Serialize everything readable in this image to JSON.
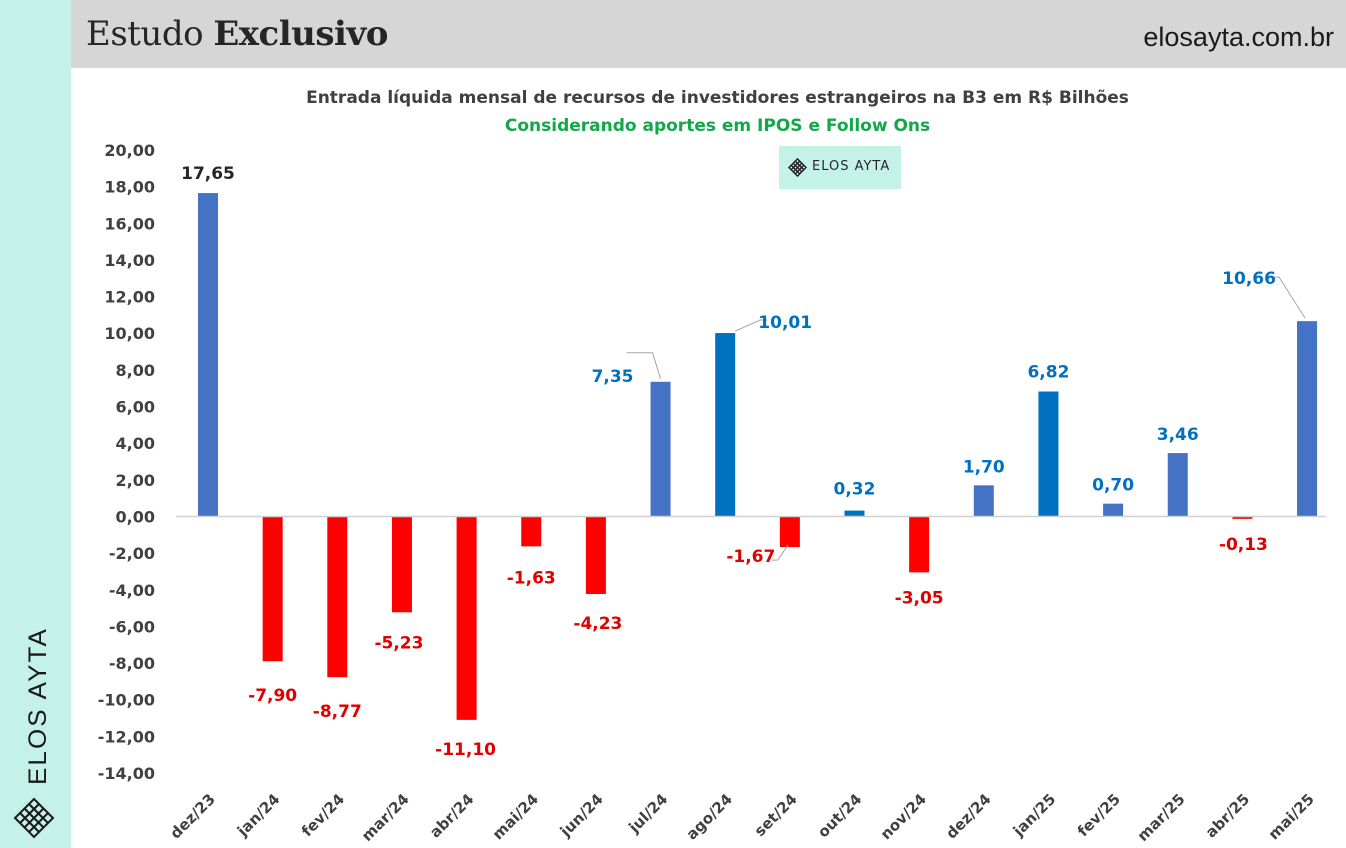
{
  "header": {
    "title_light": "Estudo",
    "title_bold": "Exclusivo",
    "url": "elosayta.com.br"
  },
  "brand": {
    "name": "ELOS AYTA",
    "accent_color": "#c4f2e8",
    "logo_icon": "lattice-diamond-icon"
  },
  "watermark": {
    "text": "ELOS AYTA"
  },
  "chart_data": {
    "type": "bar",
    "title": "Entrada líquida mensal de recursos de investidores estrangeiros na B3 em R$ Bilhões",
    "subtitle": "Considerando aportes em IPOS e Follow Ons",
    "categories": [
      "dez/23",
      "jan/24",
      "fev/24",
      "mar/24",
      "abr/24",
      "mai/24",
      "jun/24",
      "jul/24",
      "ago/24",
      "set/24",
      "out/24",
      "nov/24",
      "dez/24",
      "jan/25",
      "fev/25",
      "mar/25",
      "abr/25",
      "mai/25"
    ],
    "values": [
      17.65,
      -7.9,
      -8.77,
      -5.23,
      -11.1,
      -1.63,
      -4.23,
      7.35,
      10.01,
      -1.67,
      0.32,
      -3.05,
      1.7,
      6.82,
      0.7,
      3.46,
      -0.13,
      10.66
    ],
    "value_labels": [
      "17,65",
      "-7,90",
      "-8,77",
      "-5,23",
      "-11,10",
      "-1,63",
      "-4,23",
      "7,35",
      "10,01",
      "-1,67",
      "0,32",
      "-3,05",
      "1,70",
      "6,82",
      "0,70",
      "3,46",
      "-0,13",
      "10,66"
    ],
    "y_ticks": [
      "20,00",
      "18,00",
      "16,00",
      "14,00",
      "12,00",
      "10,00",
      "8,00",
      "6,00",
      "4,00",
      "2,00",
      "0,00",
      "-2,00",
      "-4,00",
      "-6,00",
      "-8,00",
      "-10,00",
      "-12,00",
      "-14,00"
    ],
    "ylim": [
      -14,
      20
    ],
    "xlabel": "",
    "ylabel": "",
    "grid": false,
    "colors": {
      "positive": "#4472c4",
      "positive_alt": "#0070c0",
      "negative": "#ff0000",
      "label_positive": "#0070c0",
      "label_negative": "#e00000",
      "label_first": "#262626"
    }
  }
}
